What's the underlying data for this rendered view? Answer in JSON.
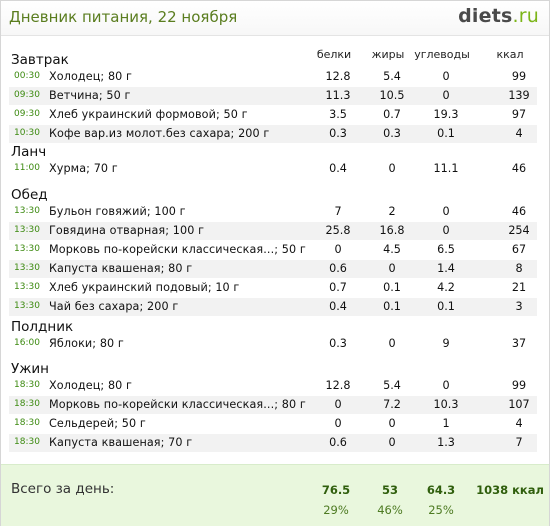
{
  "header": {
    "title": "Дневник питания, 22 ноября",
    "logo_main": "diets",
    "logo_suffix": ".ru"
  },
  "columns": {
    "protein": "белки",
    "fat": "жиры",
    "carbs": "углеводы",
    "kcal": "ккал"
  },
  "meals": [
    {
      "name": "Завтрак",
      "items": [
        {
          "time": "00:30",
          "name": "Холодец; 80 г",
          "protein": "12.8",
          "fat": "5.4",
          "carbs": "0",
          "kcal": "99"
        },
        {
          "time": "09:30",
          "name": "Ветчина; 50 г",
          "protein": "11.3",
          "fat": "10.5",
          "carbs": "0",
          "kcal": "139"
        },
        {
          "time": "09:30",
          "name": "Хлеб украинский формовой; 50 г",
          "protein": "3.5",
          "fat": "0.7",
          "carbs": "19.3",
          "kcal": "97"
        },
        {
          "time": "10:30",
          "name": "Кофе вар.из молот.без сахара; 200 г",
          "protein": "0.3",
          "fat": "0.3",
          "carbs": "0.1",
          "kcal": "4"
        }
      ]
    },
    {
      "name": "Ланч",
      "items": [
        {
          "time": "11:00",
          "name": "Хурма; 70 г",
          "protein": "0.4",
          "fat": "0",
          "carbs": "11.1",
          "kcal": "46"
        }
      ]
    },
    {
      "name": "Обед",
      "items": [
        {
          "time": "13:30",
          "name": "Бульон говяжий; 100 г",
          "protein": "7",
          "fat": "2",
          "carbs": "0",
          "kcal": "46"
        },
        {
          "time": "13:30",
          "name": "Говядина отварная; 100 г",
          "protein": "25.8",
          "fat": "16.8",
          "carbs": "0",
          "kcal": "254"
        },
        {
          "time": "13:30",
          "name": "Морковь по-корейски классическая...; 50 г",
          "protein": "0",
          "fat": "4.5",
          "carbs": "6.5",
          "kcal": "67"
        },
        {
          "time": "13:30",
          "name": "Капуста квашеная; 80 г",
          "protein": "0.6",
          "fat": "0",
          "carbs": "1.4",
          "kcal": "8"
        },
        {
          "time": "13:30",
          "name": "Хлеб украинский подовый; 10 г",
          "protein": "0.7",
          "fat": "0.1",
          "carbs": "4.2",
          "kcal": "21"
        },
        {
          "time": "13:30",
          "name": "Чай без сахара; 200 г",
          "protein": "0.4",
          "fat": "0.1",
          "carbs": "0.1",
          "kcal": "3"
        }
      ]
    },
    {
      "name": "Полдник",
      "items": [
        {
          "time": "16:00",
          "name": "Яблоки; 80 г",
          "protein": "0.3",
          "fat": "0",
          "carbs": "9",
          "kcal": "37"
        }
      ]
    },
    {
      "name": "Ужин",
      "items": [
        {
          "time": "18:30",
          "name": "Холодец; 80 г",
          "protein": "12.8",
          "fat": "5.4",
          "carbs": "0",
          "kcal": "99"
        },
        {
          "time": "18:30",
          "name": "Морковь по-корейски классическая...; 80 г",
          "protein": "0",
          "fat": "7.2",
          "carbs": "10.3",
          "kcal": "107"
        },
        {
          "time": "18:30",
          "name": "Сельдерей; 50 г",
          "protein": "0",
          "fat": "0",
          "carbs": "1",
          "kcal": "4"
        },
        {
          "time": "18:30",
          "name": "Капуста квашеная; 70 г",
          "protein": "0.6",
          "fat": "0",
          "carbs": "1.3",
          "kcal": "7"
        }
      ]
    }
  ],
  "totals": {
    "label": "Всего за день:",
    "protein": "76.5",
    "fat": "53",
    "carbs": "64.3",
    "kcal": "1038 ккал",
    "protein_pct": "29%",
    "fat_pct": "46%",
    "carbs_pct": "25%"
  },
  "colors": {
    "accent": "#5a7d1f",
    "time_green": "#3c8a10",
    "totals_bg": "#e9f7dd",
    "row_shade": "#f2f2f2"
  }
}
